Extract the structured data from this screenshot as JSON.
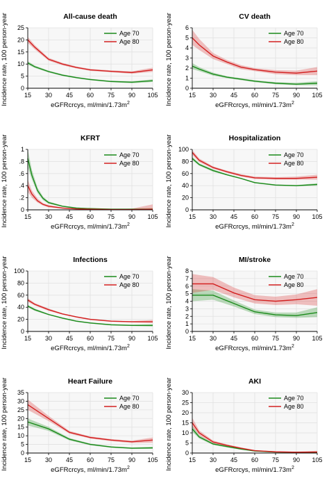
{
  "chart_data": [
    {
      "type": "line",
      "title": "All-cause death",
      "xlabel": "eGFRcrcys, ml/min/1.73m",
      "xlabel_sup": "2",
      "ylabel": "Incidence rate, 100 person-year",
      "xlim": [
        15,
        105
      ],
      "xticks": [
        15,
        30,
        45,
        60,
        75,
        90,
        105
      ],
      "ylim": [
        0,
        25
      ],
      "yticks": [
        0,
        5,
        10,
        15,
        20,
        25
      ],
      "ytick_labels": [
        "0",
        "5",
        "10",
        "15",
        "20",
        "25"
      ],
      "legend_position": "top-right",
      "grid": true,
      "x": [
        15,
        20,
        30,
        40,
        50,
        60,
        75,
        90,
        105
      ],
      "series": [
        {
          "name": "Age 70",
          "color": "#1a8a1a",
          "values": [
            10.5,
            8.9,
            6.9,
            5.4,
            4.4,
            3.6,
            2.8,
            2.5,
            3.1
          ],
          "lower": [
            9.8,
            8.4,
            6.5,
            5.1,
            4.1,
            3.3,
            2.5,
            2.1,
            2.6
          ],
          "upper": [
            11.2,
            9.4,
            7.3,
            5.8,
            4.7,
            3.9,
            3.1,
            2.9,
            3.7
          ]
        },
        {
          "name": "Age 80",
          "color": "#d32020",
          "values": [
            20.0,
            17.0,
            12.0,
            10.0,
            8.6,
            7.6,
            7.0,
            6.5,
            7.6
          ],
          "lower": [
            18.8,
            16.1,
            11.4,
            9.5,
            8.2,
            7.2,
            6.6,
            6.0,
            6.8
          ],
          "upper": [
            21.2,
            17.9,
            12.6,
            10.5,
            9.0,
            8.0,
            7.4,
            7.0,
            8.5
          ]
        }
      ]
    },
    {
      "type": "line",
      "title": "CV death",
      "xlabel": "eGFRcrcys, ml/min/1.73m",
      "xlabel_sup": "2",
      "ylabel": "Incidence rate, 100 person-year",
      "xlim": [
        15,
        105
      ],
      "xticks": [
        15,
        30,
        45,
        60,
        75,
        90,
        105
      ],
      "ylim": [
        0,
        6
      ],
      "yticks": [
        0,
        1,
        2,
        3,
        4,
        5,
        6
      ],
      "ytick_labels": [
        "0",
        "1",
        "2",
        "3",
        "4",
        "5",
        "6"
      ],
      "legend_position": "top-right",
      "grid": true,
      "x": [
        15,
        20,
        30,
        40,
        50,
        60,
        75,
        90,
        105
      ],
      "series": [
        {
          "name": "Age 70",
          "color": "#1a8a1a",
          "values": [
            2.2,
            1.9,
            1.4,
            1.1,
            0.9,
            0.7,
            0.5,
            0.4,
            0.5
          ],
          "lower": [
            1.9,
            1.7,
            1.25,
            1.0,
            0.8,
            0.6,
            0.4,
            0.3,
            0.3
          ],
          "upper": [
            2.5,
            2.1,
            1.55,
            1.2,
            1.0,
            0.8,
            0.6,
            0.55,
            0.7
          ]
        },
        {
          "name": "Age 80",
          "color": "#d32020",
          "values": [
            5.0,
            4.3,
            3.2,
            2.6,
            2.1,
            1.85,
            1.6,
            1.5,
            1.7
          ],
          "lower": [
            4.3,
            3.8,
            2.9,
            2.4,
            1.9,
            1.7,
            1.4,
            1.3,
            1.3
          ],
          "upper": [
            5.8,
            4.9,
            3.5,
            2.8,
            2.3,
            2.0,
            1.8,
            1.75,
            2.1
          ]
        }
      ]
    },
    {
      "type": "line",
      "title": "KFRT",
      "xlabel": "eGFRcrcys, ml/min/1.73m",
      "xlabel_sup": "2",
      "ylabel": "Incidence rate, 100 person-year",
      "xlim": [
        15,
        105
      ],
      "xticks": [
        15,
        30,
        45,
        60,
        75,
        90,
        105
      ],
      "ylim": [
        0,
        1
      ],
      "yticks": [
        0,
        0.2,
        0.4,
        0.6,
        0.8,
        1
      ],
      "ytick_labels": [
        "0",
        ".2",
        ".4",
        ".6",
        ".8",
        "1"
      ],
      "legend_position": "top-right",
      "grid": true,
      "x": [
        15,
        18,
        22,
        26,
        30,
        40,
        50,
        60,
        75,
        90,
        105
      ],
      "series": [
        {
          "name": "Age 70",
          "color": "#1a8a1a",
          "values": [
            0.85,
            0.57,
            0.32,
            0.19,
            0.12,
            0.06,
            0.03,
            0.02,
            0.01,
            0.01,
            0.01
          ],
          "lower": [
            0.7,
            0.5,
            0.28,
            0.16,
            0.1,
            0.05,
            0.02,
            0.01,
            0.005,
            0.005,
            0.0
          ],
          "upper": [
            1.0,
            0.66,
            0.37,
            0.22,
            0.14,
            0.07,
            0.04,
            0.025,
            0.02,
            0.02,
            0.03
          ]
        },
        {
          "name": "Age 80",
          "color": "#d32020",
          "values": [
            0.4,
            0.26,
            0.15,
            0.09,
            0.06,
            0.03,
            0.015,
            0.01,
            0.005,
            0.005,
            0.01
          ],
          "lower": [
            0.3,
            0.2,
            0.12,
            0.07,
            0.04,
            0.02,
            0.01,
            0.005,
            0.0,
            0.0,
            0.0
          ],
          "upper": [
            0.5,
            0.32,
            0.19,
            0.11,
            0.08,
            0.04,
            0.02,
            0.02,
            0.01,
            0.02,
            0.09
          ]
        }
      ]
    },
    {
      "type": "line",
      "title": "Hospitalization",
      "xlabel": "eGFRcrcys, ml/min/1.73m",
      "xlabel_sup": "2",
      "ylabel": "Incidence rate, 100 person-year",
      "xlim": [
        15,
        105
      ],
      "xticks": [
        15,
        30,
        45,
        60,
        75,
        90,
        105
      ],
      "ylim": [
        0,
        100
      ],
      "yticks": [
        0,
        20,
        40,
        60,
        80,
        100
      ],
      "ytick_labels": [
        "0",
        "20",
        "40",
        "60",
        "80",
        "100"
      ],
      "legend_position": "top-right",
      "grid": true,
      "x": [
        15,
        20,
        30,
        40,
        50,
        60,
        75,
        90,
        105
      ],
      "series": [
        {
          "name": "Age 70",
          "color": "#1a8a1a",
          "values": [
            85,
            75,
            65,
            58,
            52,
            45,
            41,
            40,
            42
          ],
          "lower": [
            82,
            73,
            63,
            57,
            51,
            44,
            40,
            39,
            40
          ],
          "upper": [
            88,
            77,
            67,
            59,
            53,
            46,
            42,
            41,
            44
          ]
        },
        {
          "name": "Age 80",
          "color": "#d32020",
          "values": [
            95,
            82,
            70,
            63,
            57,
            53,
            52,
            52,
            54
          ],
          "lower": [
            91,
            79,
            68,
            61,
            55,
            51,
            50,
            50,
            50
          ],
          "upper": [
            99,
            85,
            72,
            65,
            59,
            55,
            54,
            55,
            58
          ]
        }
      ]
    },
    {
      "type": "line",
      "title": "Infections",
      "xlabel": "eGFRcrcys, ml/min/1.73m",
      "xlabel_sup": "2",
      "ylabel": "Incidence rate, 100 person-year",
      "xlim": [
        15,
        105
      ],
      "xticks": [
        15,
        30,
        45,
        60,
        75,
        90,
        105
      ],
      "ylim": [
        0,
        100
      ],
      "yticks": [
        0,
        20,
        40,
        60,
        80,
        100
      ],
      "ytick_labels": [
        "0",
        "20",
        "40",
        "60",
        "80",
        "100"
      ],
      "legend_position": "top-right",
      "grid": true,
      "x": [
        15,
        20,
        30,
        40,
        50,
        60,
        75,
        90,
        105
      ],
      "series": [
        {
          "name": "Age 70",
          "color": "#1a8a1a",
          "values": [
            42,
            36,
            28,
            22,
            17,
            14,
            11,
            10,
            10
          ],
          "lower": [
            40,
            34,
            27,
            21,
            16,
            13,
            10,
            9,
            8
          ],
          "upper": [
            44,
            38,
            29,
            23,
            18,
            15,
            12,
            11,
            12
          ]
        },
        {
          "name": "Age 80",
          "color": "#d32020",
          "values": [
            52,
            45,
            36,
            29,
            24,
            20,
            17,
            16,
            16
          ],
          "lower": [
            49,
            43,
            34,
            28,
            23,
            19,
            16,
            15,
            14
          ],
          "upper": [
            55,
            47,
            38,
            30,
            25,
            21,
            18,
            17,
            19
          ]
        }
      ]
    },
    {
      "type": "line",
      "title": "MI/stroke",
      "xlabel": "eGFRcrcys, ml/min/1.73m",
      "xlabel_sup": "2",
      "ylabel": "Incidence rate, 100 person-year",
      "xlim": [
        15,
        105
      ],
      "xticks": [
        15,
        30,
        45,
        60,
        75,
        90,
        105
      ],
      "ylim": [
        0,
        8
      ],
      "yticks": [
        0,
        1,
        2,
        3,
        4,
        5,
        6,
        7,
        8
      ],
      "ytick_labels": [
        "0",
        "1",
        "2",
        "3",
        "4",
        "5",
        "6",
        "7",
        "8"
      ],
      "legend_position": "top-right",
      "grid": true,
      "x": [
        15,
        30,
        45,
        60,
        75,
        90,
        105
      ],
      "series": [
        {
          "name": "Age 70",
          "color": "#1a8a1a",
          "values": [
            4.8,
            4.8,
            3.7,
            2.6,
            2.2,
            2.1,
            2.5
          ],
          "lower": [
            4.0,
            4.2,
            3.3,
            2.3,
            1.9,
            1.8,
            1.9
          ],
          "upper": [
            5.6,
            5.4,
            4.1,
            2.9,
            2.5,
            2.5,
            3.2
          ]
        },
        {
          "name": "Age 80",
          "color": "#d32020",
          "values": [
            6.3,
            6.3,
            5.1,
            4.2,
            4.0,
            4.2,
            4.5
          ],
          "lower": [
            5.1,
            5.5,
            4.5,
            3.7,
            3.5,
            3.6,
            3.4
          ],
          "upper": [
            7.6,
            7.2,
            5.8,
            4.8,
            4.6,
            4.9,
            5.6
          ]
        }
      ]
    },
    {
      "type": "line",
      "title": "Heart Failure",
      "xlabel": "eGFRcrcys, ml/min/1.73m",
      "xlabel_sup": "2",
      "ylabel": "Incidence rate, 100 person-year",
      "xlim": [
        15,
        105
      ],
      "xticks": [
        15,
        30,
        45,
        60,
        75,
        90,
        105
      ],
      "ylim": [
        0,
        35
      ],
      "yticks": [
        0,
        5,
        10,
        15,
        20,
        25,
        30,
        35
      ],
      "ytick_labels": [
        "0",
        "5",
        "10",
        "15",
        "20",
        "25",
        "30",
        "35"
      ],
      "legend_position": "top-right",
      "grid": true,
      "x": [
        15,
        30,
        45,
        60,
        75,
        90,
        105
      ],
      "series": [
        {
          "name": "Age 70",
          "color": "#1a8a1a",
          "values": [
            18,
            14,
            8,
            5,
            3.5,
            2.8,
            3.0
          ],
          "lower": [
            16,
            12.8,
            7.3,
            4.5,
            3.1,
            2.4,
            2.4
          ],
          "upper": [
            20,
            15.2,
            8.7,
            5.5,
            3.9,
            3.2,
            3.6
          ]
        },
        {
          "name": "Age 80",
          "color": "#d32020",
          "values": [
            28,
            20,
            12,
            9,
            7.5,
            6.5,
            7.5
          ],
          "lower": [
            25,
            18.5,
            11.2,
            8.4,
            6.9,
            5.8,
            6.0
          ],
          "upper": [
            31,
            21.5,
            12.8,
            9.6,
            8.1,
            7.2,
            9.0
          ]
        }
      ]
    },
    {
      "type": "line",
      "title": "AKI",
      "xlabel": "eGFRcrcys, ml/min/1.73m",
      "xlabel_sup": "2",
      "ylabel": "Incidence rate, 100 person-year",
      "xlim": [
        15,
        105
      ],
      "xticks": [
        15,
        30,
        45,
        60,
        75,
        90,
        105
      ],
      "ylim": [
        0,
        30
      ],
      "yticks": [
        0,
        5,
        10,
        15,
        20,
        25,
        30
      ],
      "ytick_labels": [
        "0",
        "5",
        "10",
        "15",
        "20",
        "25",
        "30"
      ],
      "legend_position": "top-right",
      "grid": true,
      "x": [
        15,
        20,
        30,
        40,
        50,
        60,
        75,
        90,
        105
      ],
      "series": [
        {
          "name": "Age 70",
          "color": "#1a8a1a",
          "values": [
            12,
            8,
            4.5,
            3.2,
            2.0,
            1.0,
            0.5,
            0.4,
            0.4
          ],
          "lower": [
            10.5,
            7.2,
            4.0,
            2.8,
            1.7,
            0.8,
            0.3,
            0.2,
            0.1
          ],
          "upper": [
            13.5,
            8.8,
            5.0,
            3.6,
            2.3,
            1.2,
            0.7,
            0.6,
            0.8
          ]
        },
        {
          "name": "Age 80",
          "color": "#d32020",
          "values": [
            15,
            10,
            5.5,
            3.8,
            2.4,
            1.2,
            0.6,
            0.4,
            0.5
          ],
          "lower": [
            13,
            8.8,
            4.8,
            3.3,
            2.0,
            0.9,
            0.4,
            0.2,
            0.1
          ],
          "upper": [
            17.5,
            11.2,
            6.2,
            4.3,
            2.8,
            1.5,
            0.8,
            0.7,
            1.1
          ]
        }
      ]
    }
  ]
}
